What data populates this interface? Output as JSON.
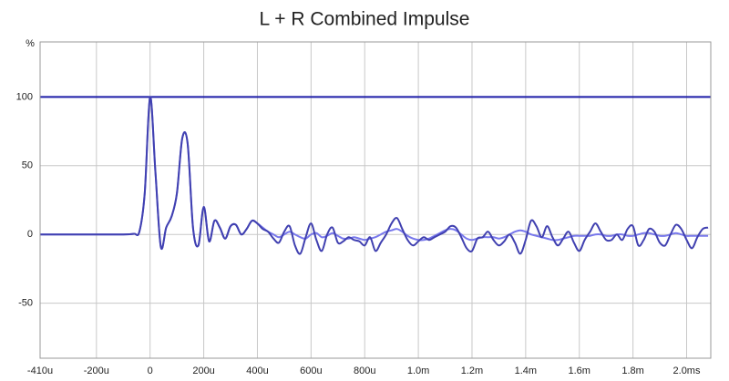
{
  "chart_data": {
    "type": "line",
    "title": "L + R Combined Impulse",
    "y_label": "%",
    "x": [
      -0.41,
      -0.3,
      -0.2,
      -0.1,
      -0.06,
      -0.04,
      -0.02,
      0,
      0.02,
      0.04,
      0.06,
      0.08,
      0.1,
      0.12,
      0.14,
      0.16,
      0.18,
      0.2,
      0.22,
      0.24,
      0.26,
      0.28,
      0.3,
      0.32,
      0.34,
      0.36,
      0.38,
      0.4,
      0.42,
      0.44,
      0.46,
      0.48,
      0.5,
      0.52,
      0.54,
      0.56,
      0.58,
      0.6,
      0.62,
      0.64,
      0.66,
      0.68,
      0.7,
      0.72,
      0.74,
      0.76,
      0.78,
      0.8,
      0.82,
      0.84,
      0.86,
      0.88,
      0.9,
      0.92,
      0.94,
      0.96,
      0.98,
      1.0,
      1.02,
      1.04,
      1.06,
      1.08,
      1.1,
      1.12,
      1.14,
      1.16,
      1.18,
      1.2,
      1.22,
      1.24,
      1.26,
      1.28,
      1.3,
      1.32,
      1.34,
      1.36,
      1.38,
      1.4,
      1.42,
      1.44,
      1.46,
      1.48,
      1.5,
      1.52,
      1.54,
      1.56,
      1.58,
      1.6,
      1.62,
      1.64,
      1.66,
      1.68,
      1.7,
      1.72,
      1.74,
      1.76,
      1.78,
      1.8,
      1.82,
      1.84,
      1.86,
      1.88,
      1.9,
      1.92,
      1.94,
      1.96,
      1.98,
      2.0,
      2.02,
      2.04,
      2.06,
      2.08
    ],
    "series": [
      {
        "color": "#7878ec",
        "values": [
          0,
          0,
          0,
          0,
          0.5,
          2,
          30,
          100,
          45,
          -9,
          5,
          13,
          30,
          70,
          66,
          5,
          -8,
          20,
          -5,
          10,
          5,
          -3,
          6,
          7,
          0,
          4,
          10,
          8,
          5,
          2,
          0,
          -2,
          0,
          2,
          0,
          -2,
          -3,
          0,
          1,
          -2,
          -1,
          1,
          -1,
          -3,
          -3,
          -2,
          -3,
          -4,
          -3,
          -2,
          0,
          2,
          3,
          4,
          2,
          -1,
          -3,
          -4,
          -4,
          -3,
          -1,
          1,
          3,
          4,
          3,
          0,
          -3,
          -4,
          -3,
          -2,
          -2,
          -2,
          -3,
          -2,
          0,
          2,
          3,
          2,
          0,
          -1,
          -2,
          -3,
          -4,
          -4,
          -3,
          -2,
          -1,
          -1,
          -1,
          -1,
          0,
          0,
          -1,
          -1,
          0,
          0,
          -1,
          -1,
          0,
          1,
          1,
          0,
          -1,
          -1,
          0,
          1,
          0,
          -1,
          -1,
          -1,
          -1,
          -1
        ]
      },
      {
        "color": "#4040b0",
        "values": [
          0,
          0,
          0,
          0,
          0.5,
          2,
          30,
          100,
          45,
          -9,
          5,
          13,
          30,
          70,
          66,
          5,
          -8,
          20,
          -5,
          10,
          5,
          -3,
          6,
          7,
          0,
          4,
          10,
          8,
          4,
          2,
          -3,
          -6,
          2,
          6,
          -8,
          -14,
          -2,
          8,
          -4,
          -12,
          0,
          5,
          -6,
          -5,
          -2,
          -4,
          -5,
          -8,
          -2,
          -12,
          -6,
          0,
          8,
          12,
          4,
          -4,
          -8,
          -5,
          -2,
          -4,
          -2,
          0,
          2,
          6,
          5,
          -2,
          -10,
          -12,
          -3,
          -2,
          2,
          -4,
          -8,
          -5,
          0,
          -6,
          -14,
          -4,
          10,
          6,
          -2,
          6,
          -2,
          -8,
          -3,
          2,
          -6,
          -12,
          -4,
          2,
          8,
          2,
          -4,
          -4,
          0,
          -4,
          4,
          6,
          -8,
          -4,
          4,
          2,
          -6,
          -8,
          0,
          7,
          4,
          -4,
          -10,
          -2,
          4,
          5
        ]
      }
    ],
    "reference_line": {
      "value": 100,
      "color": "#1c1ca8"
    },
    "xlim": [
      -0.41,
      2.09
    ],
    "ylim": [
      -90,
      140
    ],
    "xticks": [
      {
        "value": -0.41,
        "label": "-410u"
      },
      {
        "value": -0.2,
        "label": "-200u"
      },
      0,
      {
        "value": 0.2,
        "label": "200u"
      },
      {
        "value": 0.4,
        "label": "400u"
      },
      {
        "value": 0.6,
        "label": "600u"
      },
      {
        "value": 0.8,
        "label": "800u"
      },
      {
        "value": 1.0,
        "label": "1.0m"
      },
      {
        "value": 1.2,
        "label": "1.2m"
      },
      {
        "value": 1.4,
        "label": "1.4m"
      },
      {
        "value": 1.6,
        "label": "1.6m"
      },
      {
        "value": 1.8,
        "label": "1.8m"
      },
      {
        "value": 2.0,
        "label": "2.0ms"
      }
    ],
    "yticks": [
      100,
      50,
      0,
      -50
    ],
    "grid": true
  }
}
